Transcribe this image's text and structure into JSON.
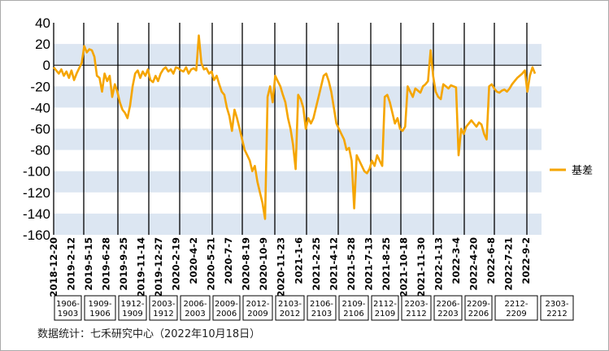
{
  "chart_data": {
    "type": "line",
    "title": "",
    "xlabel": "",
    "ylabel": "",
    "ylim": [
      -160,
      40
    ],
    "y_ticks": [
      40,
      20,
      0,
      -20,
      -40,
      -60,
      -80,
      -100,
      -120,
      -140,
      -160
    ],
    "grid": "horizontal alternating bands",
    "legend_position": "right",
    "x_tick_labels": [
      "2018-12-20",
      "2019-2-12",
      "2019-5-15",
      "2019-6-28",
      "2019-9-25",
      "2019-11-14",
      "2019-12-27",
      "2020-2-19",
      "2020-4-2",
      "2020-5-21",
      "2020-7-7",
      "2020-8-19",
      "2020-10-9",
      "2020-11-23",
      "2021-1-6",
      "2021-2-25",
      "2021-4-12",
      "2021-5-28",
      "2021-7-13",
      "2021-8-25",
      "2021-10-18",
      "2021-11-30",
      "2022-1-13",
      "2022-3-4",
      "2022-4-20",
      "2022-6-8",
      "2022-7-21",
      "2022-9-2"
    ],
    "contract_periods": [
      {
        "line1": "1906-",
        "line2": "1903"
      },
      {
        "line1": "1909-",
        "line2": "1906"
      },
      {
        "line1": "1912-",
        "line2": "1909"
      },
      {
        "line1": "2003-",
        "line2": "1912"
      },
      {
        "line1": "2006-",
        "line2": "2003"
      },
      {
        "line1": "2009-",
        "line2": "2006"
      },
      {
        "line1": "2012-",
        "line2": "2009"
      },
      {
        "line1": "2103-",
        "line2": "2012"
      },
      {
        "line1": "2106-",
        "line2": "2103"
      },
      {
        "line1": "2109-",
        "line2": "2106"
      },
      {
        "line1": "2112-",
        "line2": "2109"
      },
      {
        "line1": "2203-",
        "line2": "2112"
      },
      {
        "line1": "2206-",
        "line2": "2203"
      },
      {
        "line1": "2209-",
        "line2": "2206"
      },
      {
        "line1": "2212-",
        "line2": "2209"
      },
      {
        "line1": "2303-",
        "line2": "2212"
      }
    ],
    "series": [
      {
        "name": "基差",
        "color": "#f5a500",
        "values": [
          -2,
          -5,
          -8,
          -4,
          -10,
          -6,
          -12,
          -5,
          -14,
          -8,
          -3,
          2,
          18,
          12,
          15,
          14,
          8,
          -10,
          -12,
          -25,
          -8,
          -15,
          -10,
          -30,
          -18,
          -25,
          -35,
          -42,
          -45,
          -50,
          -38,
          -20,
          -8,
          -5,
          -12,
          -6,
          -10,
          -4,
          -14,
          -16,
          -10,
          -15,
          -8,
          -4,
          -2,
          -6,
          -4,
          -8,
          -2,
          -3,
          -5,
          -6,
          -2,
          -8,
          -4,
          -3,
          -5,
          28,
          2,
          -4,
          -3,
          -8,
          -6,
          -14,
          -10,
          -18,
          -25,
          -28,
          -40,
          -48,
          -62,
          -42,
          -50,
          -60,
          -70,
          -80,
          -85,
          -90,
          -100,
          -95,
          -110,
          -120,
          -130,
          -145,
          -30,
          -20,
          -35,
          -10,
          -15,
          -20,
          -28,
          -35,
          -50,
          -60,
          -75,
          -98,
          -28,
          -32,
          -40,
          -60,
          -50,
          -55,
          -50,
          -40,
          -30,
          -20,
          -10,
          -8,
          -15,
          -25,
          -40,
          -55,
          -60,
          -65,
          -70,
          -80,
          -78,
          -90,
          -135,
          -85,
          -90,
          -95,
          -100,
          -102,
          -98,
          -90,
          -95,
          -85,
          -90,
          -95,
          -30,
          -28,
          -35,
          -45,
          -55,
          -50,
          -60,
          -62,
          -58,
          -20,
          -25,
          -30,
          -22,
          -24,
          -26,
          -20,
          -18,
          -15,
          14,
          -10,
          -25,
          -30,
          -32,
          -18,
          -20,
          -22,
          -19,
          -20,
          -21,
          -85,
          -60,
          -65,
          -58,
          -55,
          -52,
          -55,
          -58,
          -54,
          -56,
          -65,
          -70,
          -20,
          -18,
          -22,
          -25,
          -26,
          -24,
          -23,
          -25,
          -22,
          -18,
          -15,
          -12,
          -10,
          -8,
          -5,
          -25,
          -10,
          -2,
          -8
        ]
      }
    ]
  },
  "legend": {
    "label": "基差"
  },
  "footer": {
    "source": "数据统计：七禾研究中心（2022年10月18日）"
  }
}
